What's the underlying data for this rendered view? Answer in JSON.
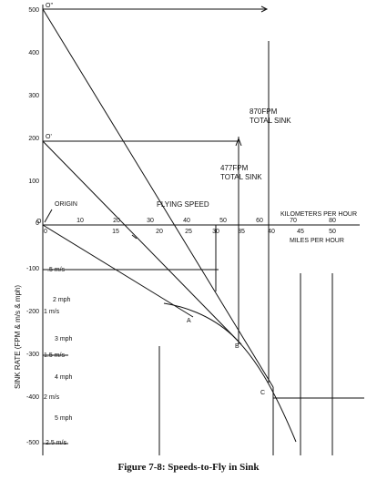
{
  "figure": {
    "caption": "Figure 7-8: Speeds-to-Fly in Sink",
    "points": {
      "o2": "O''",
      "o1": "O'",
      "o": "O",
      "origin": "ORIGIN",
      "a": "A",
      "b": "B",
      "c": "C"
    },
    "annotations": {
      "flying_speed": "FLYING SPEED",
      "sink_870": "870FPM",
      "sink_870_sub": "TOTAL SINK",
      "sink_477": "477FPM",
      "sink_477_sub": "TOTAL SINK",
      "kph": "KILOMETERS PER HOUR",
      "mph": "MILES PER HOUR"
    },
    "y_axis_title": "SINK RATE (FPM & m/s & mph)",
    "fpm_ticks": [
      "500",
      "400",
      "300",
      "200",
      "100",
      "0",
      "-100",
      "-200",
      "-300",
      "-400",
      "-500"
    ],
    "kph_ticks": [
      "10",
      "20",
      "30",
      "40",
      "50",
      "60",
      "70",
      "80"
    ],
    "mph_ticks": [
      "0",
      "15",
      "20",
      "25",
      "30",
      "35",
      "40",
      "45",
      "50"
    ],
    "inner_ticks": [
      ".5 m/s",
      "2 mph",
      "1 m/s",
      "3 mph",
      "1.5 m/s",
      "4 mph",
      "2 m/s",
      "5 mph",
      "2.5 m/s"
    ]
  }
}
